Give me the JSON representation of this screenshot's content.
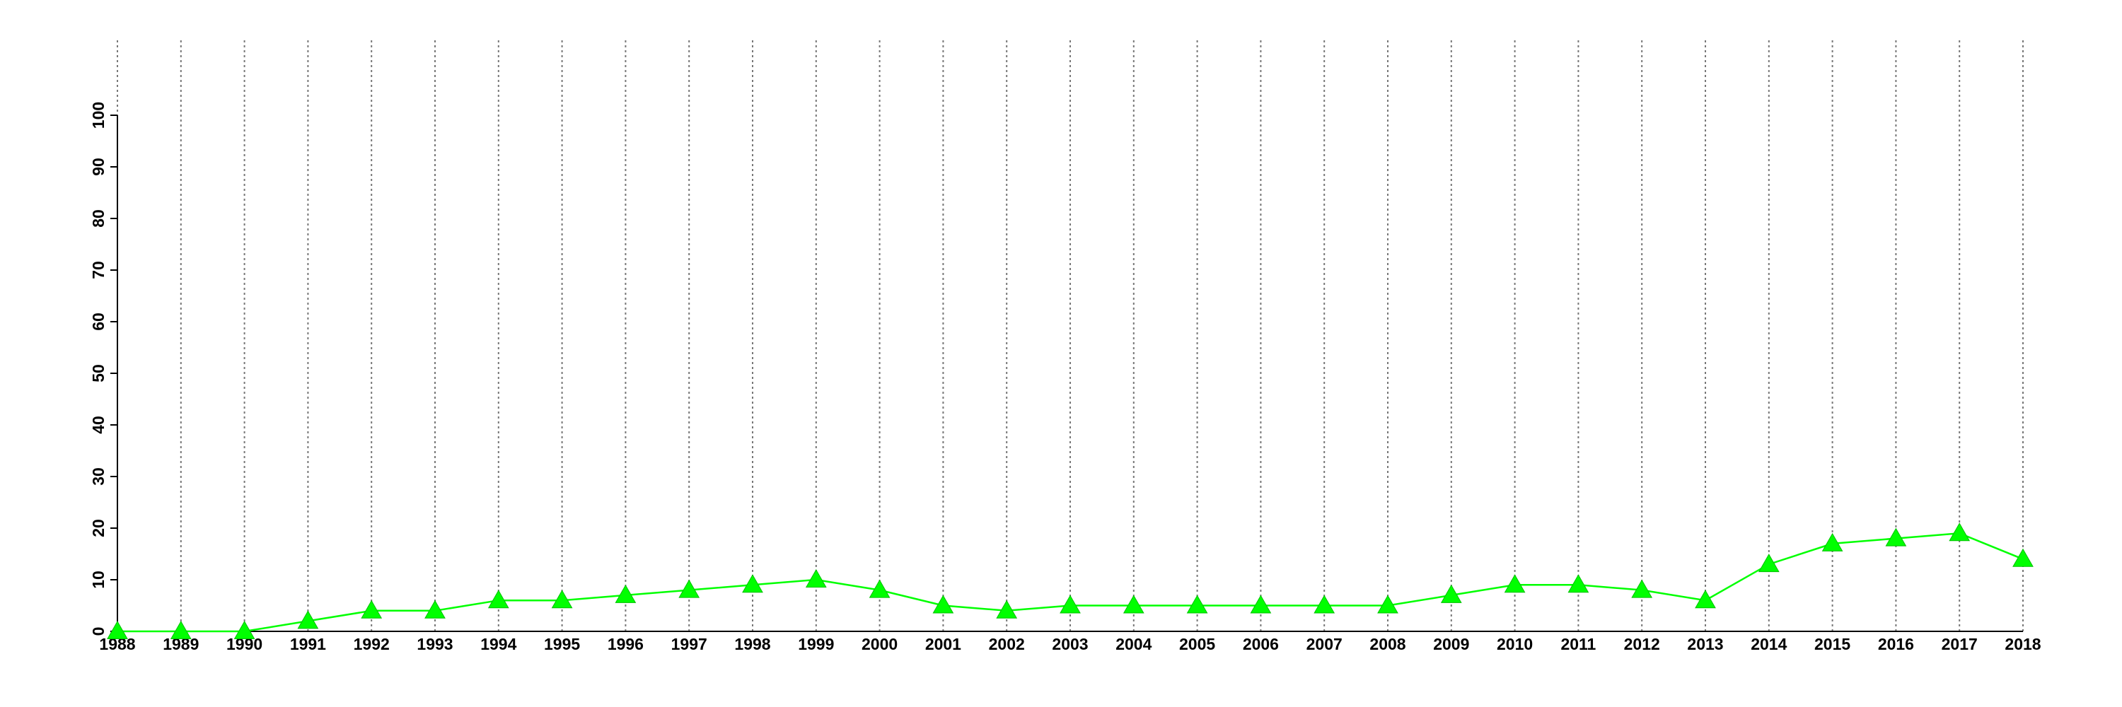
{
  "chart_data": {
    "type": "line",
    "categories": [
      "1988",
      "1989",
      "1990",
      "1991",
      "1992",
      "1993",
      "1994",
      "1995",
      "1996",
      "1997",
      "1998",
      "1999",
      "2000",
      "2001",
      "2002",
      "2003",
      "2004",
      "2005",
      "2006",
      "2007",
      "2008",
      "2009",
      "2010",
      "2011",
      "2012",
      "2013",
      "2014",
      "2015",
      "2016",
      "2017",
      "2018"
    ],
    "values": [
      0,
      0,
      0,
      2,
      4,
      4,
      6,
      6,
      7,
      8,
      9,
      10,
      8,
      5,
      4,
      5,
      5,
      5,
      5,
      5,
      5,
      7,
      9,
      9,
      8,
      6,
      13,
      17,
      18,
      19,
      14
    ],
    "color": "#00ff00",
    "marker": "triangle",
    "ylim": [
      0,
      100
    ],
    "yticks": [
      0,
      10,
      20,
      30,
      40,
      50,
      60,
      70,
      80,
      90,
      100
    ],
    "grid": true
  }
}
